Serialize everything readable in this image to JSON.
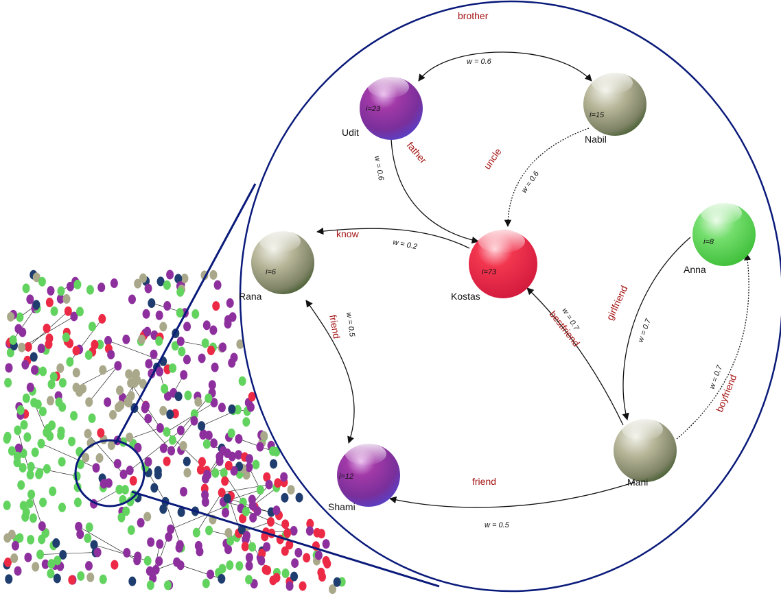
{
  "colors": {
    "zoom_outline": "#0a1a7a",
    "relation_text": "#a41414",
    "node_purple": "#8e2f9e",
    "node_olive": "#a9a88a",
    "node_red": "#ec2a45",
    "node_green": "#63d35f",
    "node_navy": "#1f3d6e"
  },
  "nodes": {
    "udit": {
      "name": "Udit",
      "index": "i=23",
      "color": "purple"
    },
    "nabil": {
      "name": "Nabil",
      "index": "i=15",
      "color": "olive"
    },
    "kostas": {
      "name": "Kostas",
      "index": "i=73",
      "color": "red"
    },
    "anna": {
      "name": "Anna",
      "index": "i=8",
      "color": "green"
    },
    "rana": {
      "name": "Rana",
      "index": "i=6",
      "color": "olive"
    },
    "shami": {
      "name": "Shami",
      "index": "i=12",
      "color": "purple"
    },
    "mani": {
      "name": "Mani",
      "index": "",
      "color": "olive"
    }
  },
  "edges": {
    "udit_nabil": {
      "relation": "brother",
      "weight": "w = 0.6"
    },
    "udit_kostas": {
      "relation": "father",
      "weight": "w = 0.6"
    },
    "nabil_kostas": {
      "relation": "uncle",
      "weight": "w = 0.6"
    },
    "kostas_rana": {
      "relation": "know",
      "weight": "w = 0.2"
    },
    "rana_shami": {
      "relation": "friend",
      "weight": "w = 0.5"
    },
    "mani_kostas": {
      "relation": "bestfriend",
      "weight": "w = 0.7"
    },
    "anna_mani": {
      "relation": "girlfriend",
      "weight": "w = 0.7"
    },
    "mani_anna": {
      "relation": "boyfriend",
      "weight": "w = 0.7"
    },
    "mani_shami": {
      "relation": "friend",
      "weight": "w = 0.5"
    }
  }
}
